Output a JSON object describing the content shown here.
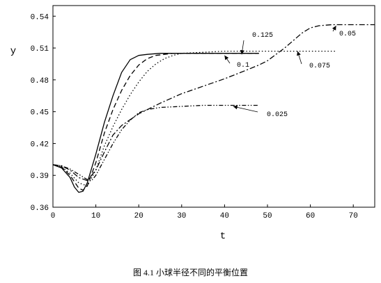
{
  "caption": "图 4.1 小球半径不同的平衡位置",
  "chart_data": {
    "type": "line",
    "xlabel": "t",
    "ylabel": "y",
    "xlim": [
      0,
      75
    ],
    "ylim": [
      0.36,
      0.55
    ],
    "x_ticks": [
      "0",
      "10",
      "20",
      "30",
      "40",
      "50",
      "60",
      "70"
    ],
    "y_ticks": [
      "0.36",
      "0.39",
      "0.42",
      "0.45",
      "0.48",
      "0.51",
      "0.54"
    ],
    "grid": false,
    "series": [
      {
        "name": "0.125",
        "dash": "solid",
        "x": [
          0,
          2,
          4,
          5,
          6,
          7,
          8,
          10,
          12,
          14,
          16,
          18,
          20,
          22,
          25,
          30,
          35,
          40,
          45,
          48
        ],
        "y": [
          0.4,
          0.397,
          0.388,
          0.379,
          0.374,
          0.375,
          0.383,
          0.41,
          0.44,
          0.465,
          0.487,
          0.499,
          0.503,
          0.504,
          0.505,
          0.505,
          0.505,
          0.505,
          0.505,
          0.505
        ]
      },
      {
        "name": "0.1",
        "dash": "dashed",
        "x": [
          0,
          2,
          4,
          6,
          7,
          8,
          10,
          12,
          14,
          16,
          18,
          20,
          22,
          24,
          26,
          28,
          30,
          35,
          40,
          45,
          48
        ],
        "y": [
          0.4,
          0.398,
          0.39,
          0.378,
          0.376,
          0.38,
          0.402,
          0.43,
          0.452,
          0.47,
          0.484,
          0.494,
          0.5,
          0.503,
          0.504,
          0.505,
          0.505,
          0.505,
          0.505,
          0.505,
          0.505
        ]
      },
      {
        "name": "0.075",
        "dash": "dotted",
        "x": [
          0,
          2,
          4,
          6,
          8,
          10,
          12,
          14,
          16,
          18,
          20,
          22,
          24,
          26,
          28,
          30,
          35,
          40,
          45,
          50,
          55,
          60,
          66
        ],
        "y": [
          0.4,
          0.398,
          0.392,
          0.383,
          0.38,
          0.395,
          0.418,
          0.436,
          0.452,
          0.466,
          0.478,
          0.488,
          0.495,
          0.5,
          0.503,
          0.505,
          0.506,
          0.507,
          0.507,
          0.507,
          0.507,
          0.507,
          0.507
        ]
      },
      {
        "name": "0.05",
        "dash": "dash-dot",
        "x": [
          0,
          2,
          4,
          6,
          8,
          10,
          12,
          14,
          16,
          20,
          25,
          30,
          35,
          40,
          45,
          48,
          50,
          52,
          54,
          56,
          58,
          60,
          62,
          65,
          70,
          75
        ],
        "y": [
          0.4,
          0.399,
          0.395,
          0.388,
          0.385,
          0.395,
          0.412,
          0.428,
          0.437,
          0.448,
          0.458,
          0.467,
          0.474,
          0.481,
          0.489,
          0.494,
          0.498,
          0.504,
          0.51,
          0.517,
          0.524,
          0.529,
          0.531,
          0.532,
          0.532,
          0.532
        ]
      },
      {
        "name": "0.025",
        "dash": "dash-dot-dot",
        "x": [
          0,
          2,
          4,
          6,
          8,
          9,
          10,
          12,
          14,
          16,
          18,
          20,
          22,
          25,
          30,
          35,
          40,
          45,
          48
        ],
        "y": [
          0.4,
          0.399,
          0.396,
          0.391,
          0.386,
          0.385,
          0.39,
          0.405,
          0.42,
          0.433,
          0.442,
          0.449,
          0.452,
          0.454,
          0.455,
          0.456,
          0.456,
          0.456,
          0.456
        ]
      }
    ],
    "annotations": [
      {
        "text": "0.125",
        "series": "0.125",
        "x": 44,
        "y": 0.504
      },
      {
        "text": "0.1",
        "series": "0.1",
        "x": 40,
        "y": 0.503
      },
      {
        "text": "0.075",
        "series": "0.075",
        "x": 57,
        "y": 0.507
      },
      {
        "text": "0.05",
        "series": "0.05",
        "x": 66,
        "y": 0.531
      },
      {
        "text": "0.025",
        "series": "0.025",
        "x": 42,
        "y": 0.455
      }
    ]
  }
}
